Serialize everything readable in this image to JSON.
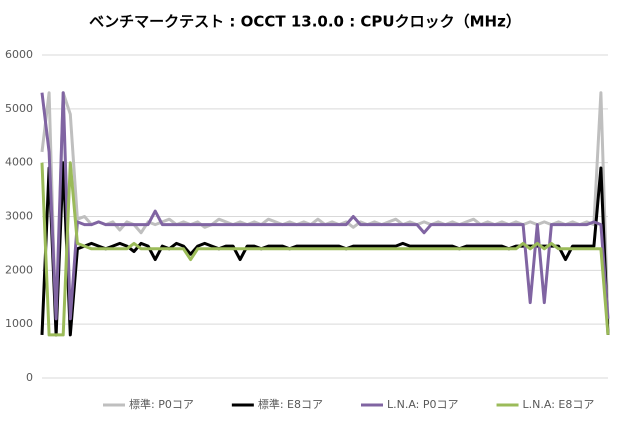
{
  "chart_data": {
    "type": "line",
    "title": "ベンチマークテスト : OCCT 13.0.0 : CPUクロック（MHz）",
    "ylim": [
      0,
      6000
    ],
    "yticks": [
      0,
      1000,
      2000,
      3000,
      4000,
      5000,
      6000
    ],
    "grid": true,
    "legend": "bottom",
    "series": [
      {
        "name": "標準: P0コア",
        "color": "#bfbfbf",
        "values": [
          4200,
          5300,
          800,
          5300,
          4900,
          2950,
          3000,
          2850,
          2900,
          2850,
          2900,
          2750,
          2900,
          2850,
          2700,
          2900,
          2850,
          2900,
          2950,
          2850,
          2900,
          2850,
          2900,
          2800,
          2850,
          2950,
          2900,
          2850,
          2900,
          2850,
          2900,
          2850,
          2950,
          2900,
          2850,
          2900,
          2850,
          2900,
          2850,
          2950,
          2850,
          2900,
          2850,
          2900,
          2800,
          2900,
          2850,
          2900,
          2850,
          2900,
          2950,
          2850,
          2900,
          2850,
          2900,
          2850,
          2900,
          2850,
          2900,
          2850,
          2900,
          2950,
          2850,
          2900,
          2850,
          2900,
          2850,
          2900,
          2850,
          2900,
          2850,
          2900,
          2850,
          2900,
          2850,
          2900,
          2850,
          2900,
          2850,
          5300,
          1000
        ]
      },
      {
        "name": "標準: E8コア",
        "color": "#000000",
        "values": [
          800,
          3900,
          800,
          4000,
          800,
          2400,
          2450,
          2500,
          2450,
          2400,
          2450,
          2500,
          2450,
          2350,
          2500,
          2450,
          2200,
          2450,
          2400,
          2500,
          2450,
          2300,
          2450,
          2500,
          2450,
          2400,
          2450,
          2450,
          2200,
          2450,
          2450,
          2400,
          2450,
          2450,
          2450,
          2400,
          2450,
          2450,
          2450,
          2450,
          2450,
          2450,
          2450,
          2400,
          2450,
          2450,
          2450,
          2450,
          2450,
          2450,
          2450,
          2500,
          2450,
          2450,
          2450,
          2450,
          2450,
          2450,
          2450,
          2400,
          2450,
          2450,
          2450,
          2450,
          2450,
          2450,
          2400,
          2450,
          2450,
          2450,
          2450,
          2450,
          2450,
          2450,
          2200,
          2450,
          2450,
          2450,
          2450,
          3900,
          800
        ]
      },
      {
        "name": "L.N.A: P0コア",
        "color": "#8064a2",
        "values": [
          5300,
          4200,
          1100,
          5300,
          1100,
          2900,
          2850,
          2850,
          2900,
          2850,
          2850,
          2850,
          2850,
          2850,
          2850,
          2850,
          3100,
          2850,
          2850,
          2850,
          2850,
          2850,
          2850,
          2850,
          2850,
          2850,
          2850,
          2850,
          2850,
          2850,
          2850,
          2850,
          2850,
          2850,
          2850,
          2850,
          2850,
          2850,
          2850,
          2850,
          2850,
          2850,
          2850,
          2850,
          3000,
          2850,
          2850,
          2850,
          2850,
          2850,
          2850,
          2850,
          2850,
          2850,
          2700,
          2850,
          2850,
          2850,
          2850,
          2850,
          2850,
          2850,
          2850,
          2850,
          2850,
          2850,
          2850,
          2850,
          2850,
          1400,
          2850,
          1400,
          2850,
          2850,
          2850,
          2850,
          2850,
          2850,
          2900,
          2850,
          1100
        ]
      },
      {
        "name": "L.N.A: E8コア",
        "color": "#9bbb59",
        "values": [
          4000,
          800,
          800,
          800,
          4000,
          2500,
          2450,
          2400,
          2400,
          2400,
          2400,
          2400,
          2400,
          2500,
          2400,
          2400,
          2400,
          2400,
          2400,
          2400,
          2400,
          2200,
          2400,
          2400,
          2400,
          2400,
          2400,
          2400,
          2400,
          2400,
          2400,
          2400,
          2400,
          2400,
          2400,
          2400,
          2400,
          2400,
          2400,
          2400,
          2400,
          2400,
          2400,
          2400,
          2400,
          2400,
          2400,
          2400,
          2400,
          2400,
          2400,
          2400,
          2400,
          2400,
          2400,
          2400,
          2400,
          2400,
          2400,
          2400,
          2400,
          2400,
          2400,
          2400,
          2400,
          2400,
          2400,
          2400,
          2500,
          2400,
          2500,
          2400,
          2500,
          2400,
          2400,
          2400,
          2400,
          2400,
          2400,
          2400,
          800
        ]
      }
    ]
  }
}
